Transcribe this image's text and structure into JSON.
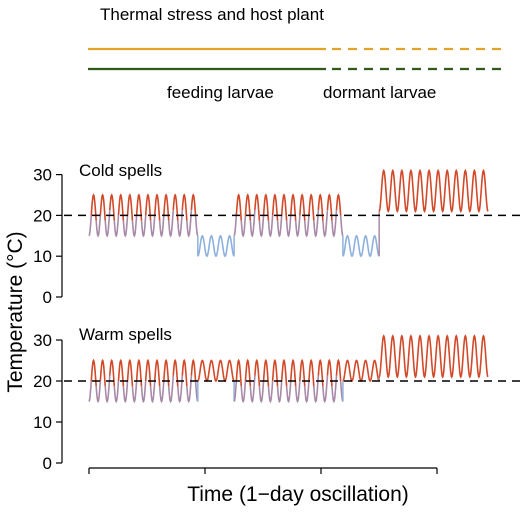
{
  "legend": {
    "title": "Thermal stress and host plant",
    "feeding_label": "feeding larvae",
    "dormant_label": "dormant larvae",
    "stress_color": "#E3A22A",
    "host_color": "#2F5A17"
  },
  "axes": {
    "ylabel": "Temperature (°C)",
    "xlabel": "Time (1−day oscillation)"
  },
  "colors": {
    "hot": "#D24A2A",
    "cool": "#A88AA8",
    "cold": "#8FB1DD",
    "threshold": "#000000"
  },
  "chart_data": [
    {
      "type": "line",
      "title": "Cold spells",
      "ylabel": "Temperature (°C)",
      "xlabel": "Time (1−day oscillation)",
      "ylim": [
        0,
        36
      ],
      "yticks": [
        0,
        10,
        20,
        30
      ],
      "threshold": 20,
      "oscillation": "1-day",
      "segments": [
        {
          "days": 12,
          "min": 15,
          "max": 25
        },
        {
          "days": 4,
          "min": 10,
          "max": 15
        },
        {
          "days": 12,
          "min": 15,
          "max": 25
        },
        {
          "days": 4,
          "min": 10,
          "max": 15
        },
        {
          "days": 12,
          "min": 21,
          "max": 31
        }
      ]
    },
    {
      "type": "line",
      "title": "Warm spells",
      "ylabel": "Temperature (°C)",
      "xlabel": "Time (1−day oscillation)",
      "ylim": [
        0,
        36
      ],
      "yticks": [
        0,
        10,
        20,
        30
      ],
      "threshold": 20,
      "oscillation": "1-day",
      "segments": [
        {
          "days": 12,
          "min": 15,
          "max": 25
        },
        {
          "days": 4,
          "min": 20,
          "max": 25
        },
        {
          "days": 12,
          "min": 15,
          "max": 25
        },
        {
          "days": 4,
          "min": 20,
          "max": 25
        },
        {
          "days": 12,
          "min": 21,
          "max": 31
        }
      ]
    }
  ]
}
